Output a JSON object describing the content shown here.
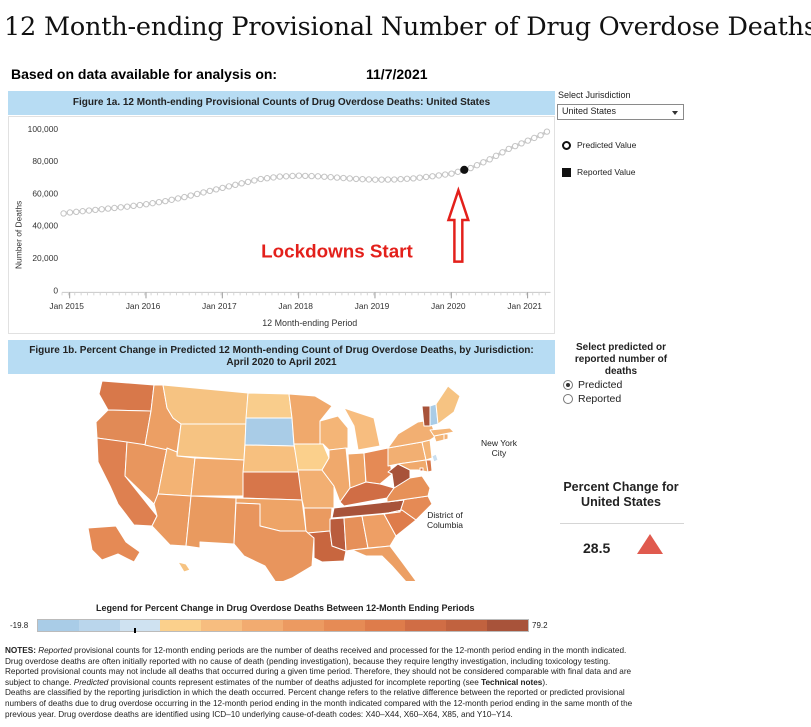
{
  "page_title": "12 Month-ending Provisional Number of Drug Overdose Deaths",
  "based_on": {
    "label": "Based on data available for analysis on:",
    "date": "11/7/2021"
  },
  "fig1a": {
    "title": "Figure 1a. 12 Month-ending Provisional Counts of Drug Overdose Deaths: United States",
    "annotation": "Lockdowns Start",
    "legend": {
      "predicted": "Predicted Value",
      "reported": "Reported Value"
    }
  },
  "jurisdiction": {
    "label": "Select Jurisdiction",
    "value": "United States"
  },
  "fig1b": {
    "title_line1": "Figure 1b. Percent Change in Predicted 12 Month-ending Count of Drug Overdose Deaths, by Jurisdiction:",
    "title_line2": "April 2020 to April 2021",
    "ny_label": "New York City",
    "dc_label": "District of Columbia"
  },
  "select_predicted": {
    "title": "Select predicted or reported number of deaths",
    "options": [
      "Predicted",
      "Reported"
    ],
    "selected": "Predicted"
  },
  "percent_change": {
    "title": "Percent Change for United States",
    "value": "28.5",
    "direction": "up",
    "color": "#e05a4e"
  },
  "map_legend": {
    "title": "Legend for Percent Change in Drug Overdose Deaths Between 12-Month Ending Periods",
    "min": "-19.8",
    "max": "79.2",
    "colors": [
      "#a9cce7",
      "#bad6ec",
      "#cfe2f1",
      "#fbd08c",
      "#f7bd7f",
      "#f2ab70",
      "#ec9a61",
      "#e68b55",
      "#de7c4b",
      "#d06d45",
      "#c1623f",
      "#a8533a"
    ]
  },
  "notes": {
    "n1a": "NOTES: ",
    "n1b": "Reported",
    "n1c": " provisional counts for 12-month ending periods are the number of deaths received and processed for the 12-month period ending in the month indicated.",
    "n2": "Drug overdose deaths are often initially reported with no cause of death (pending investigation), because they require lengthy investigation, including toxicology testing.",
    "n3": "Reported provisional counts may not include all deaths that occurred during a given time period. Therefore, they should not be considered comparable with final data and are",
    "n4a": "subject to change. ",
    "n4b": "Predicted",
    "n4c": " provisional counts represent estimates of the number of deaths adjusted for incomplete reporting (see ",
    "n4d": "Technical notes",
    "n4e": ").",
    "n5": "Deaths are classified by the reporting jurisdiction in which the death occurred. Percent change refers to the relative difference between the reported or predicted provisional",
    "n6": "numbers of deaths due to drug overdose occurring in the 12-month period ending in the month indicated compared with the 12-month period ending in the same month of the",
    "n7": "previous year. Drug overdose deaths are identified using ICD–10 underlying cause-of-death codes: X40–X44, X60–X64, X85, and Y10–Y14."
  },
  "chart_data": {
    "type": "line",
    "ylabel": "Number of Deaths",
    "xlabel": "12 Month-ending Period",
    "ylim": [
      0,
      103000
    ],
    "xlim": [
      2014.9,
      2021.3
    ],
    "yticks": [
      0,
      20000,
      40000,
      60000,
      80000,
      100000
    ],
    "ytick_labels": [
      "0",
      "20,000",
      "40,000",
      "60,000",
      "80,000",
      "100,000"
    ],
    "xticks": [
      2015,
      2016,
      2017,
      2018,
      2019,
      2020,
      2021
    ],
    "xtick_labels": [
      "Jan 2015",
      "Jan 2016",
      "Jan 2017",
      "Jan 2018",
      "Jan 2019",
      "Jan 2020",
      "Jan 2021"
    ],
    "series": [
      {
        "type": "predicted",
        "points": [
          [
            2014.92,
            47600
          ],
          [
            2015.0,
            48200
          ],
          [
            2015.25,
            49400
          ],
          [
            2015.5,
            50600
          ],
          [
            2015.75,
            51800
          ],
          [
            2016.0,
            53300
          ],
          [
            2016.25,
            55200
          ],
          [
            2016.5,
            57700
          ],
          [
            2016.75,
            60600
          ],
          [
            2017.0,
            63400
          ],
          [
            2017.25,
            66200
          ],
          [
            2017.5,
            68900
          ],
          [
            2017.75,
            70400
          ],
          [
            2018.0,
            71000
          ],
          [
            2018.25,
            70600
          ],
          [
            2018.5,
            69800
          ],
          [
            2018.75,
            69000
          ],
          [
            2019.0,
            68500
          ],
          [
            2019.25,
            68600
          ],
          [
            2019.5,
            69300
          ],
          [
            2019.75,
            70600
          ],
          [
            2020.0,
            72200
          ],
          [
            2020.25,
            75600
          ],
          [
            2020.5,
            81000
          ],
          [
            2020.75,
            87500
          ],
          [
            2021.0,
            92600
          ],
          [
            2021.17,
            96000
          ],
          [
            2021.33,
            100300
          ]
        ]
      },
      {
        "type": "reported",
        "points": [
          [
            2020.17,
            74600
          ]
        ]
      }
    ]
  }
}
